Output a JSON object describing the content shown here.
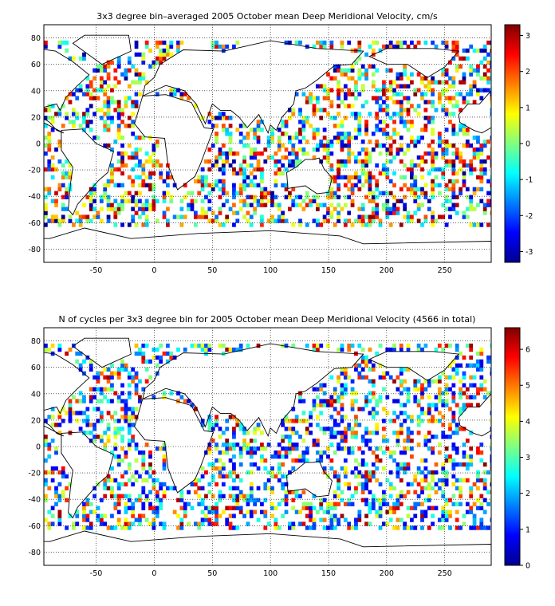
{
  "chart_data": [
    {
      "type": "heatmap",
      "title": "3x3 degree bin–averaged 2005 October mean Deep Meridional Velocity, cm/s",
      "xlim": [
        -95,
        290
      ],
      "ylim": [
        -90,
        90
      ],
      "xticks": [
        -50,
        0,
        50,
        100,
        150,
        200,
        250
      ],
      "yticks": [
        80,
        60,
        40,
        20,
        0,
        -20,
        -40,
        -60,
        -80
      ],
      "grid": true,
      "bin_size_deg": 3,
      "colorbar": {
        "range": [
          -3.3,
          3.3
        ],
        "ticks": [
          3,
          2,
          1,
          0,
          -1,
          -2,
          -3
        ],
        "colormap": "jet",
        "placement": "right"
      },
      "color_scheme_endpoints": [
        "#00008f",
        "#800000"
      ]
    },
    {
      "type": "heatmap",
      "title": "N of cycles per 3x3 degree bin for 2005 October mean Deep Meridional Velocity (4566 in total)",
      "xlim": [
        -95,
        290
      ],
      "ylim": [
        -90,
        90
      ],
      "xticks": [
        -50,
        0,
        50,
        100,
        150,
        200,
        250
      ],
      "yticks": [
        80,
        60,
        40,
        20,
        0,
        -20,
        -40,
        -60,
        -80
      ],
      "grid": true,
      "bin_size_deg": 3,
      "total_cycles": 4566,
      "colorbar": {
        "range": [
          0,
          6.6
        ],
        "ticks": [
          6,
          5,
          4,
          3,
          2,
          1,
          0
        ],
        "colormap": "jet",
        "placement": "right"
      }
    }
  ]
}
